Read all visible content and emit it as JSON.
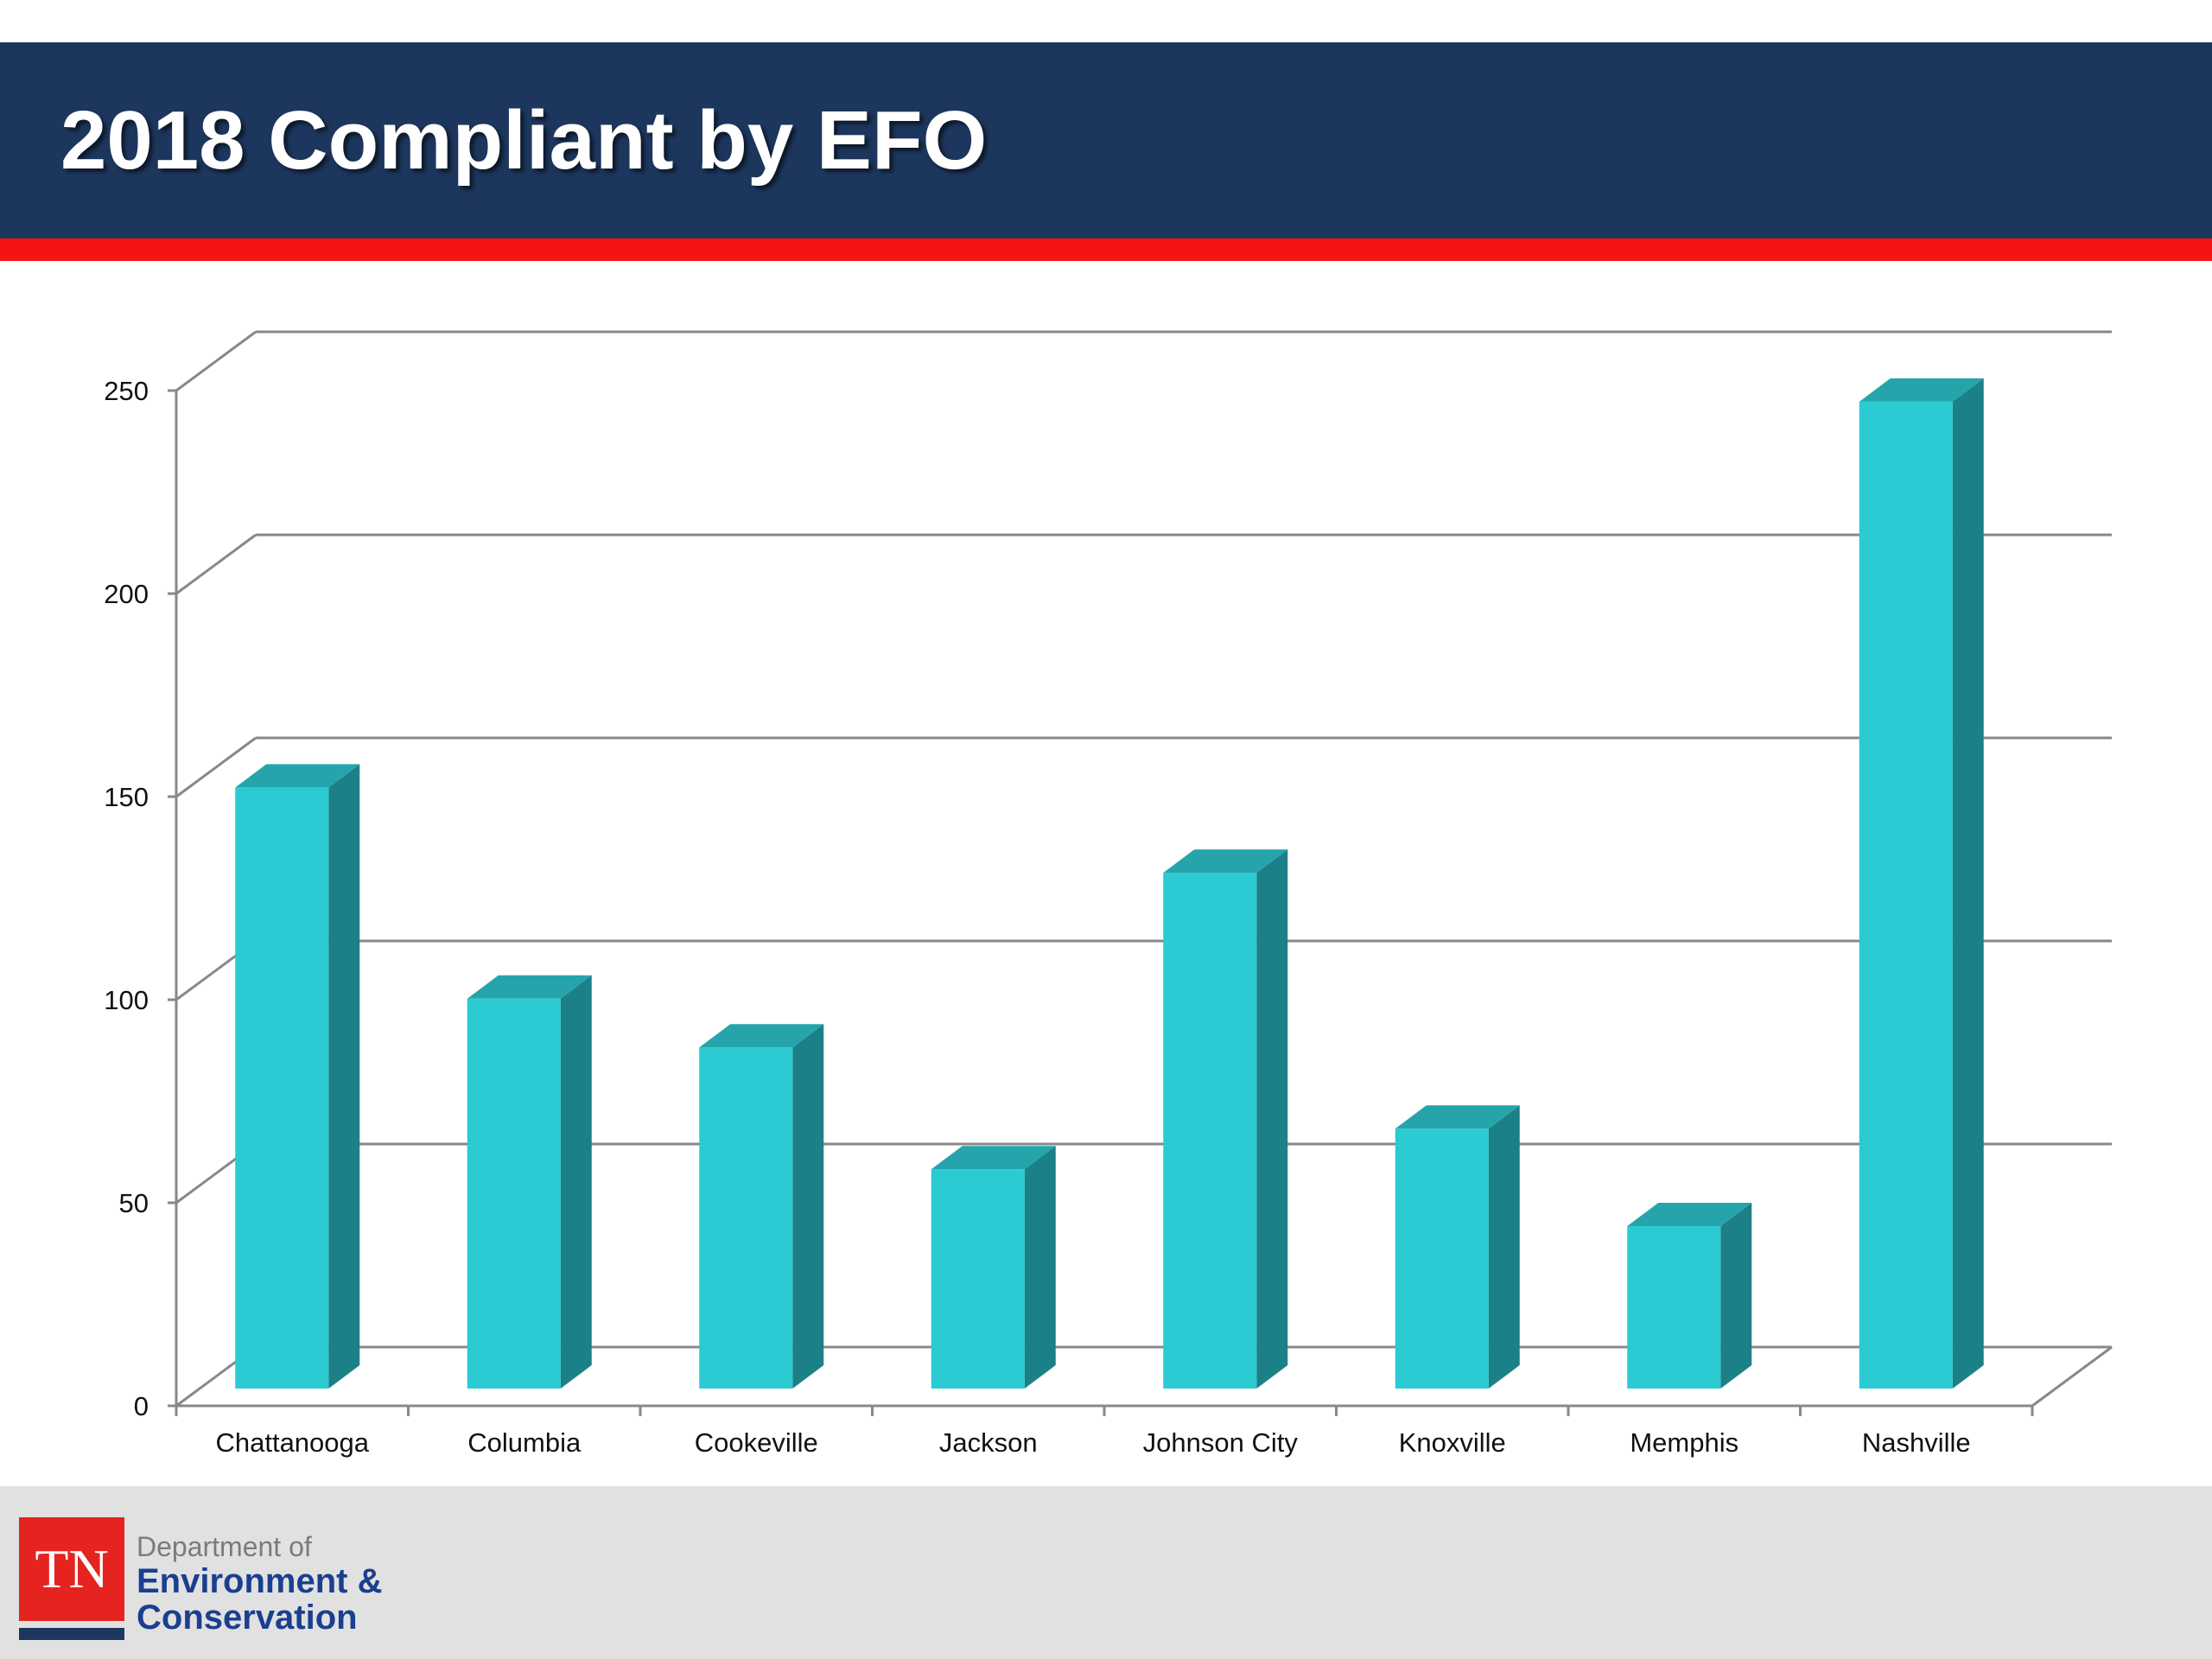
{
  "header": {
    "title": "2018 Compliant by EFO"
  },
  "footer": {
    "logo_mark": "TN",
    "logo_line1": "Department of",
    "logo_line2": "Environment &",
    "logo_line3": "Conservation"
  },
  "colors": {
    "title_bar": "#1d365d",
    "accent_stripe": "#f41411",
    "bar_front": "#2ccbd3",
    "bar_side": "#1c8088",
    "bar_top": "#25a5ab",
    "grid": "#888888",
    "footer_bg": "#e1e1e1"
  },
  "chart_data": {
    "type": "bar",
    "style": "3d-column",
    "title": "",
    "xlabel": "",
    "ylabel": "",
    "categories": [
      "Chattanooga",
      "Columbia",
      "Cookeville",
      "Jackson",
      "Johnson City",
      "Knoxville",
      "Memphis",
      "Nashville"
    ],
    "values": [
      148,
      96,
      84,
      54,
      127,
      64,
      40,
      243
    ],
    "ylim": [
      0,
      250
    ],
    "yticks": [
      0,
      50,
      100,
      150,
      200,
      250
    ],
    "grid": true,
    "legend": "none"
  }
}
